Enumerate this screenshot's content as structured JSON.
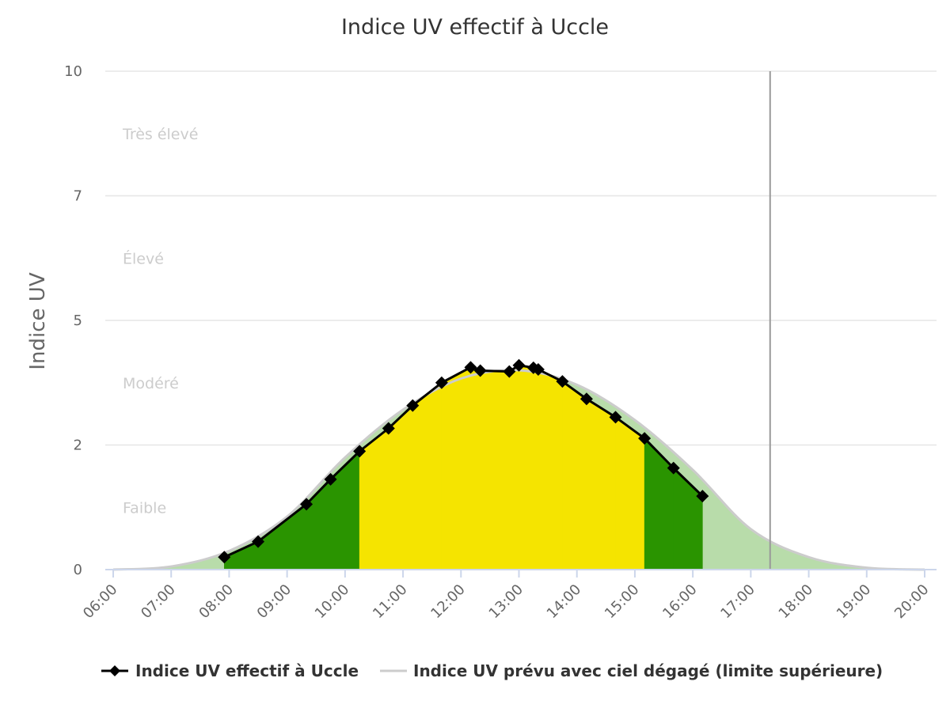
{
  "chart_data": {
    "type": "area",
    "title": "Indice UV effectif à Uccle",
    "ylabel": "Indice UV",
    "xlabel": "",
    "ylim": [
      0,
      10
    ],
    "xlim": [
      "06:00",
      "20:00"
    ],
    "y_ticks": [
      "0",
      "2",
      "5",
      "7",
      "10"
    ],
    "x_ticks": [
      "06:00",
      "07:00",
      "08:00",
      "09:00",
      "10:00",
      "11:00",
      "12:00",
      "13:00",
      "14:00",
      "15:00",
      "16:00",
      "17:00",
      "18:00",
      "19:00",
      "20:00"
    ],
    "grid": true,
    "legend_position": "bottom",
    "bands": [
      {
        "label": "Faible",
        "from": 0,
        "to": 2,
        "color": "#2a9400"
      },
      {
        "label": "Modéré",
        "from": 2,
        "to": 5,
        "color": "#f5e400"
      },
      {
        "label": "Élevé",
        "from": 5,
        "to": 7,
        "color": "#f08000"
      },
      {
        "label": "Très élevé",
        "from": 7,
        "to": 10,
        "color": "#d8001d"
      }
    ],
    "current_time": "17:20",
    "series": [
      {
        "name": "Indice UV effectif à Uccle",
        "color": "#000000",
        "x": [
          "07:55",
          "08:30",
          "09:20",
          "09:45",
          "10:15",
          "10:45",
          "11:10",
          "11:40",
          "12:10",
          "12:20",
          "12:50",
          "13:00",
          "13:15",
          "13:20",
          "13:45",
          "14:10",
          "14:40",
          "15:10",
          "15:40",
          "16:10"
        ],
        "y": [
          0.2,
          0.45,
          1.05,
          1.45,
          1.9,
          2.4,
          2.95,
          3.5,
          3.87,
          3.79,
          3.77,
          3.92,
          3.86,
          3.82,
          3.53,
          3.11,
          2.67,
          2.16,
          1.63,
          1.18
        ]
      },
      {
        "name": "Indice UV prévu avec ciel dégagé (limite supérieure)",
        "color": "#cccccc",
        "x": [
          "06:00",
          "07:00",
          "08:00",
          "09:00",
          "10:00",
          "11:00",
          "12:00",
          "13:00",
          "14:00",
          "15:00",
          "16:00",
          "17:00",
          "18:00",
          "19:00",
          "20:00"
        ],
        "y": [
          0.0,
          0.05,
          0.3,
          0.85,
          1.8,
          2.85,
          3.6,
          3.8,
          3.45,
          2.6,
          1.6,
          0.65,
          0.2,
          0.03,
          0.0
        ]
      }
    ]
  }
}
